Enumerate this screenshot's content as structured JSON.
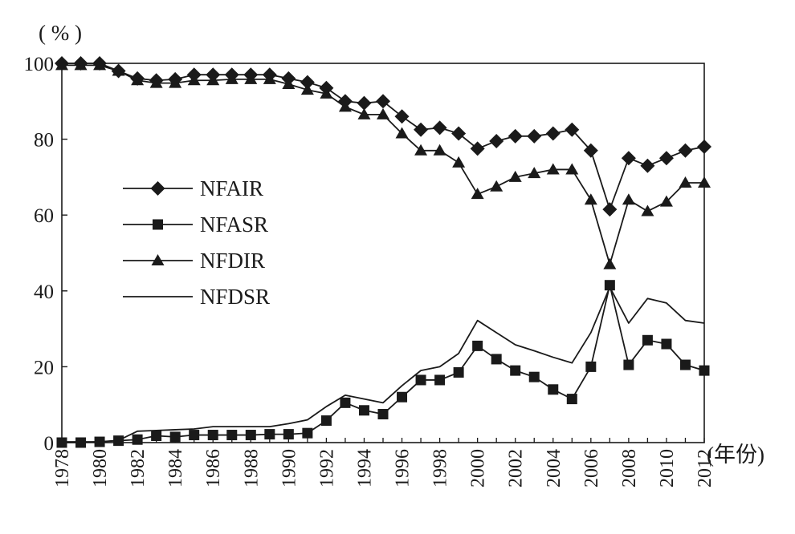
{
  "chart_data": {
    "type": "line",
    "title": "",
    "y_unit_label": "( % )",
    "x_unit_label": "(年份)",
    "xlim": [
      1978,
      2012
    ],
    "ylim": [
      0,
      100
    ],
    "y_ticks": [
      0,
      20,
      40,
      60,
      80,
      100
    ],
    "x_ticks": [
      1978,
      1980,
      1982,
      1984,
      1986,
      1988,
      1990,
      1992,
      1994,
      1996,
      1998,
      2000,
      2002,
      2004,
      2006,
      2008,
      2010,
      2012
    ],
    "grid": false,
    "legend_position": "left-middle",
    "x": [
      1978,
      1979,
      1980,
      1981,
      1982,
      1983,
      1984,
      1985,
      1986,
      1987,
      1988,
      1989,
      1990,
      1991,
      1992,
      1993,
      1994,
      1995,
      1996,
      1997,
      1998,
      1999,
      2000,
      2001,
      2002,
      2003,
      2004,
      2005,
      2006,
      2007,
      2008,
      2009,
      2010,
      2011,
      2012
    ],
    "series": [
      {
        "name": "NFAIR",
        "marker": "diamond",
        "values": [
          100,
          100,
          100,
          98,
          96,
          95.5,
          95.8,
          97,
          97,
          97,
          97,
          97,
          96,
          95,
          93.5,
          90,
          89.5,
          90,
          86,
          82.5,
          83,
          81.5,
          77.5,
          79.5,
          80.8,
          80.8,
          81.5,
          82.5,
          77,
          61.5,
          75,
          73,
          75,
          77,
          78
        ]
      },
      {
        "name": "NFASR",
        "marker": "square",
        "values": [
          0,
          0,
          0.2,
          0.5,
          0.8,
          1.8,
          1.5,
          2,
          2,
          2,
          2,
          2.2,
          2.2,
          2.5,
          5.8,
          10.5,
          8.5,
          7.5,
          12,
          16.5,
          16.5,
          18.5,
          25.5,
          22,
          19,
          17.3,
          14,
          11.5,
          20,
          41.5,
          20.5,
          27,
          26,
          20.5,
          19
        ]
      },
      {
        "name": "NFDIR",
        "marker": "triangle",
        "values": [
          99.5,
          99.5,
          99.5,
          98,
          95.5,
          94.8,
          94.8,
          95.5,
          95.5,
          95.8,
          95.8,
          95.8,
          94.5,
          93,
          92,
          88.5,
          86.5,
          86.5,
          81.5,
          77,
          77,
          73.8,
          65.5,
          67.5,
          70,
          71,
          72,
          72,
          64,
          47,
          64,
          61,
          63.5,
          68.5,
          68.5
        ]
      },
      {
        "name": "NFDSR",
        "marker": "none",
        "values": [
          0.2,
          0.2,
          0.2,
          0.6,
          3,
          3.2,
          3.4,
          3.6,
          4.2,
          4.2,
          4.2,
          4.2,
          5,
          6,
          9.5,
          12.5,
          11.5,
          10.5,
          15,
          19,
          20,
          23.5,
          32.2,
          29,
          25.8,
          24.2,
          22.5,
          21,
          29,
          41,
          31.5,
          38,
          36.8,
          32.2,
          31.5
        ]
      }
    ]
  }
}
